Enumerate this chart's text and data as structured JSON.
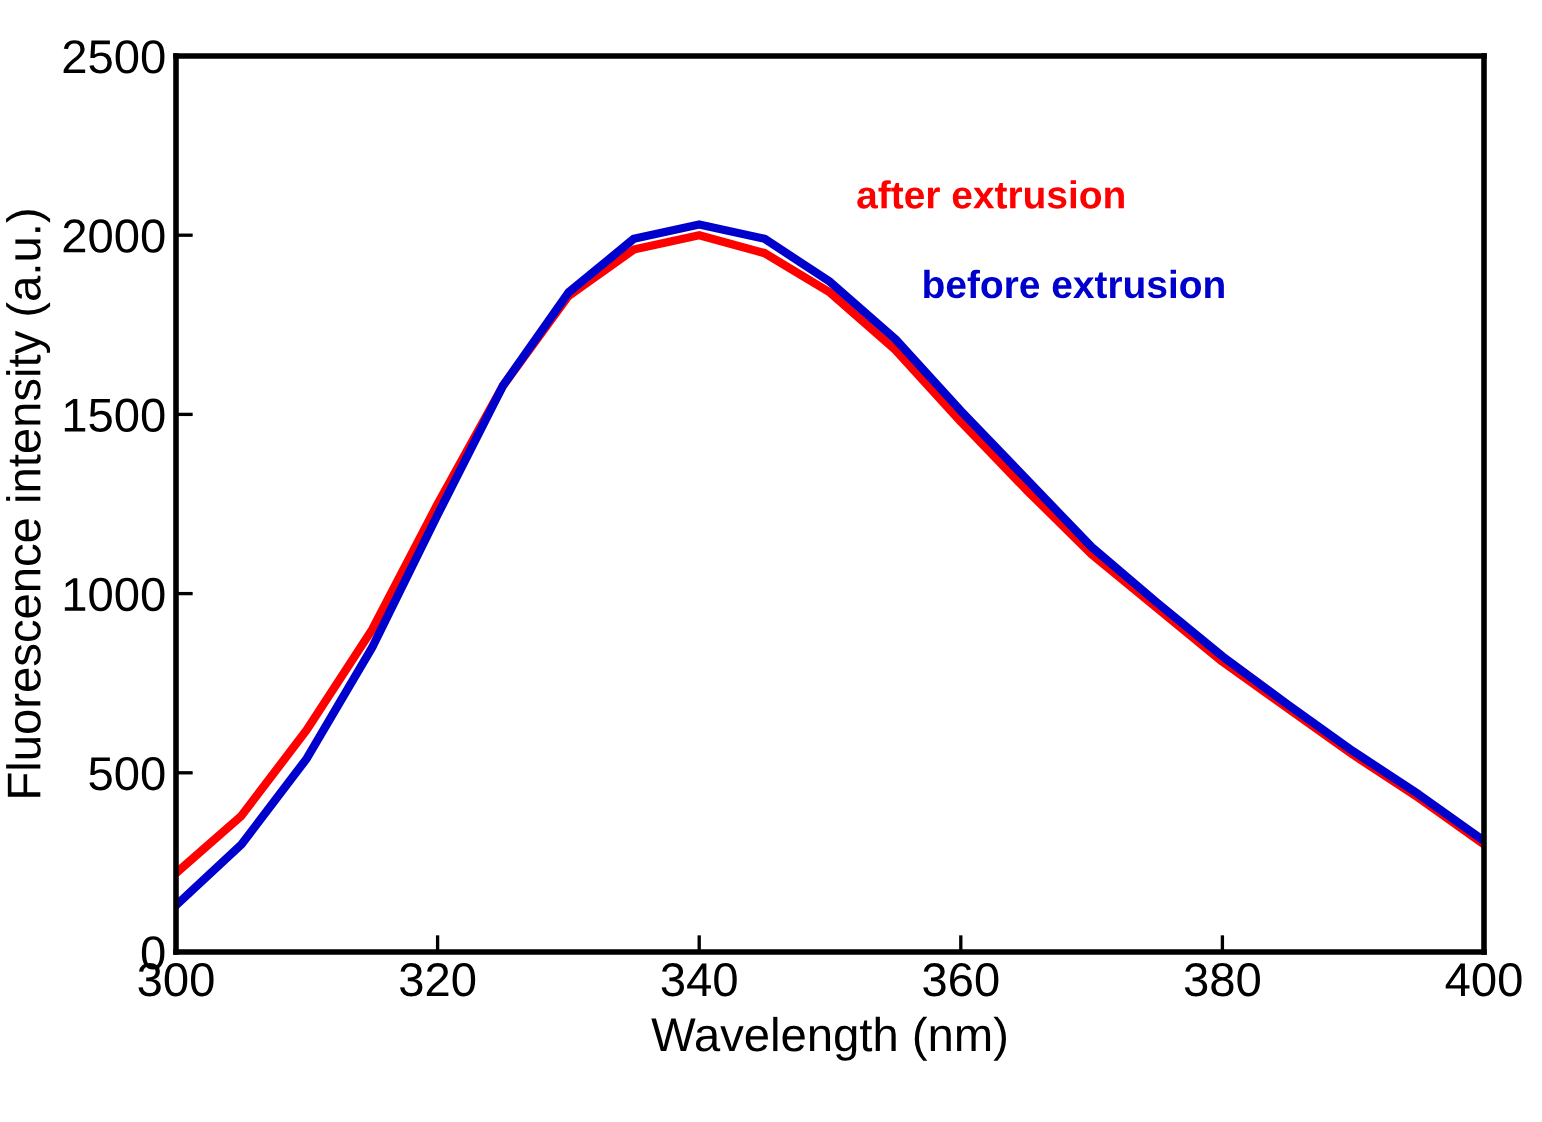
{
  "chart_data": {
    "type": "line",
    "xlabel": "Wavelength (nm)",
    "ylabel": "Fluorescence intensity (a.u.)",
    "x": [
      300,
      305,
      310,
      315,
      320,
      325,
      330,
      335,
      340,
      345,
      350,
      355,
      360,
      365,
      370,
      375,
      380,
      385,
      390,
      395,
      400
    ],
    "series": [
      {
        "name": "after extrusion",
        "color": "#ff0000",
        "values": [
          220,
          380,
          620,
          900,
          1250,
          1580,
          1830,
          1960,
          2000,
          1950,
          1840,
          1680,
          1480,
          1290,
          1110,
          960,
          810,
          680,
          550,
          430,
          300
        ]
      },
      {
        "name": "before extrusion",
        "color": "#0000cc",
        "values": [
          130,
          300,
          540,
          850,
          1220,
          1580,
          1840,
          1990,
          2030,
          1990,
          1870,
          1710,
          1510,
          1320,
          1130,
          975,
          825,
          690,
          560,
          440,
          310
        ]
      }
    ],
    "xlim": [
      300,
      400
    ],
    "xticks": [
      300,
      320,
      340,
      360,
      380,
      400
    ],
    "ylim": [
      0,
      2500
    ],
    "yticks": [
      0,
      500,
      1000,
      1500,
      2000,
      2500
    ],
    "grid": false,
    "legend": false,
    "marker": "none",
    "line_style": "solid"
  }
}
